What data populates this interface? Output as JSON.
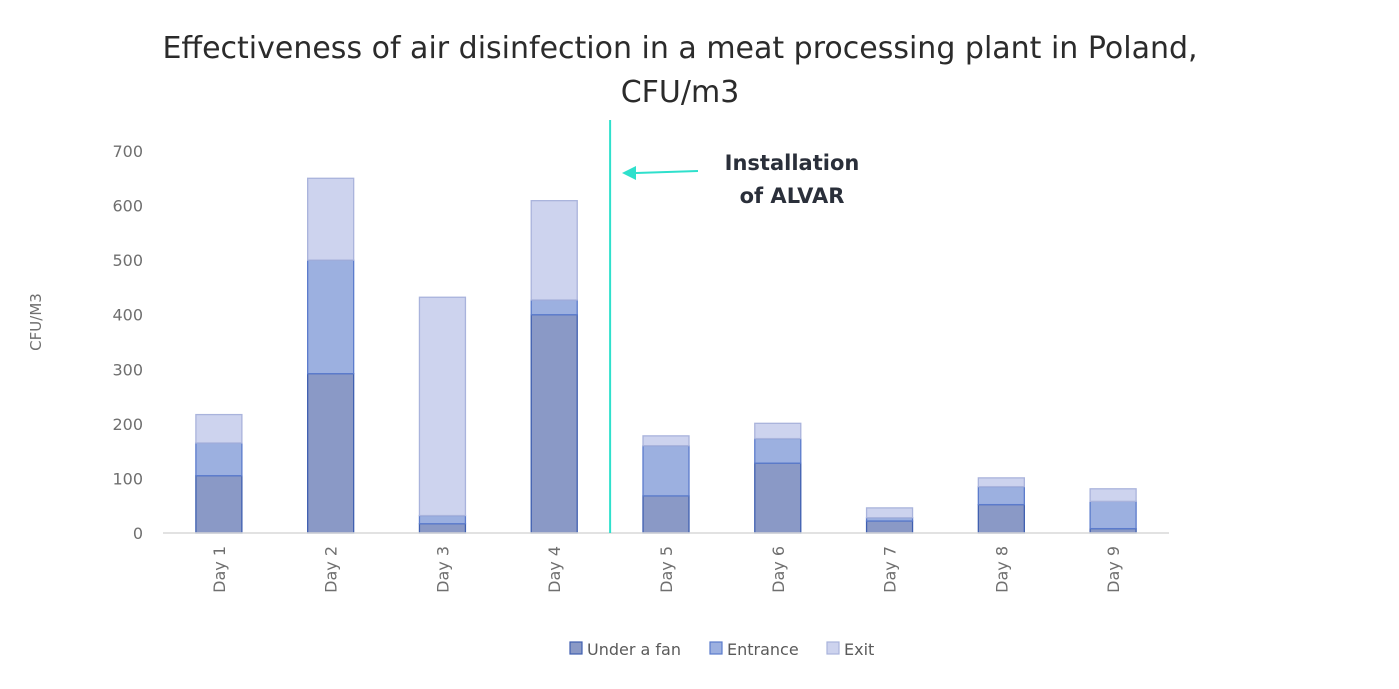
{
  "chart_data": {
    "type": "bar",
    "stacked": true,
    "title_lines": [
      "Effectiveness of air disinfection in a meat processing plant in Poland,",
      "CFU/m3"
    ],
    "xlabel": "",
    "ylabel": "CFU/M3",
    "ylim": [
      0,
      700
    ],
    "yticks": [
      0,
      100,
      200,
      300,
      400,
      500,
      600,
      700
    ],
    "grid": false,
    "legend_position": "bottom",
    "categories": [
      "Day 1",
      "Day 2",
      "Day 3",
      "Day 4",
      "Day 5",
      "Day 6",
      "Day 7",
      "Day 8",
      "Day 9"
    ],
    "series": [
      {
        "name": "Under a fan",
        "color": "#8a99c6",
        "edge": "#3f5fb0",
        "values": [
          105,
          292,
          17,
          400,
          68,
          128,
          22,
          52,
          8
        ]
      },
      {
        "name": "Entrance",
        "color": "#9cb0e0",
        "edge": "#5b7bcc",
        "values": [
          60,
          208,
          15,
          27,
          92,
          45,
          6,
          33,
          50
        ]
      },
      {
        "name": "Exit",
        "color": "#cdd3ee",
        "edge": "#a9b3dc",
        "values": [
          52,
          150,
          400,
          182,
          18,
          28,
          18,
          16,
          23
        ]
      }
    ],
    "annotation": {
      "lines": [
        "Installation",
        "of ALVAR"
      ],
      "color": "#2fe0cc",
      "after_category": "Day 4"
    }
  }
}
